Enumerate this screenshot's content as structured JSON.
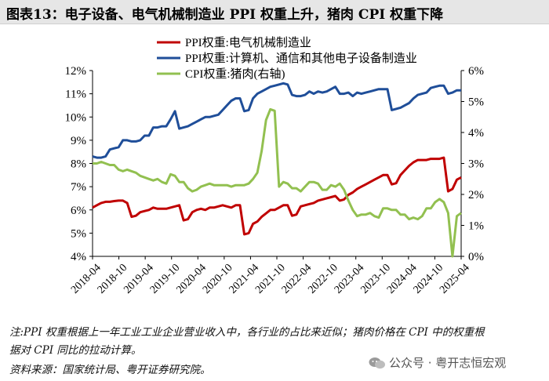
{
  "title": "图表13：电子设备、电气机械制造业 PPI 权重上升，猪肉 CPI 权重下降",
  "notes": {
    "line1": "注:PPI 权重根据上一年工业工业企业营业收入中，各行业的占比来近似；猪肉价格在 CPI 中的权重根",
    "line2": "据对 CPI 同比的拉动计算。",
    "source": "资料来源：国家统计局、粤开证券研究院。"
  },
  "watermark": {
    "text": "公众号 · 粤开志恒宏观",
    "icon": "wechat-icon"
  },
  "chart_data": {
    "type": "line",
    "title": "图表13：电子设备、电气机械制造业 PPI 权重上升，猪肉 CPI 权重下降",
    "x_ticks": [
      "2018-04",
      "2018-10",
      "2019-04",
      "2019-10",
      "2020-04",
      "2020-10",
      "2021-04",
      "2021-10",
      "2022-04",
      "2022-10",
      "2023-04",
      "2023-10",
      "2024-04",
      "2024-10",
      "2025-04"
    ],
    "y_left": {
      "lim": [
        4,
        12
      ],
      "ticks": [
        "4%",
        "5%",
        "6%",
        "7%",
        "8%",
        "9%",
        "10%",
        "11%",
        "12%"
      ]
    },
    "y_right": {
      "lim": [
        0,
        6
      ],
      "ticks": [
        "0%",
        "1%",
        "2%",
        "3%",
        "4%",
        "5%",
        "6%"
      ]
    },
    "legend": [
      "PPI权重:电气机械制造业",
      "PPI权重:计算机、通信和其他电子设备制造业",
      "CPI权重:猪肉(右轴)"
    ],
    "series": [
      {
        "name": "PPI权重:电气机械制造业",
        "color": "#c00000",
        "axis": "left",
        "values": [
          6.1,
          6.2,
          6.3,
          6.35,
          6.35,
          6.38,
          6.4,
          6.4,
          6.3,
          5.7,
          5.75,
          5.9,
          5.95,
          6.0,
          6.1,
          6.05,
          6.05,
          6.05,
          6.1,
          6.15,
          6.2,
          5.55,
          5.6,
          5.9,
          6.0,
          6.05,
          6.0,
          6.1,
          6.1,
          6.15,
          6.2,
          6.15,
          6.1,
          6.2,
          6.2,
          4.95,
          5.0,
          5.4,
          5.5,
          5.7,
          5.85,
          6.0,
          6.0,
          6.1,
          6.2,
          6.2,
          5.75,
          5.8,
          6.15,
          6.2,
          6.25,
          6.3,
          6.4,
          6.45,
          6.5,
          6.55,
          6.6,
          6.4,
          6.45,
          6.65,
          6.75,
          6.9,
          7.0,
          7.1,
          7.2,
          7.3,
          7.4,
          7.5,
          7.5,
          7.1,
          7.15,
          7.5,
          7.7,
          7.9,
          8.05,
          8.15,
          8.15,
          8.15,
          8.2,
          8.2,
          8.2,
          8.25,
          6.8,
          6.9,
          7.3,
          7.4
        ]
      },
      {
        "name": "PPI权重:计算机、通信和其他电子设备制造业",
        "color": "#1f4e99",
        "axis": "left",
        "values": [
          8.3,
          8.25,
          8.25,
          8.3,
          8.6,
          8.65,
          8.7,
          9.0,
          9.0,
          8.95,
          8.95,
          9.0,
          9.2,
          9.2,
          9.55,
          9.55,
          9.6,
          9.6,
          9.9,
          10.25,
          9.5,
          9.55,
          9.6,
          9.7,
          9.8,
          9.9,
          10.0,
          10.0,
          10.05,
          10.1,
          10.3,
          10.5,
          10.7,
          10.8,
          10.8,
          10.25,
          10.3,
          10.8,
          11.0,
          11.1,
          11.2,
          11.3,
          11.35,
          11.4,
          11.45,
          11.4,
          10.95,
          10.9,
          10.9,
          10.95,
          11.1,
          11.0,
          11.1,
          11.05,
          11.1,
          11.2,
          11.3,
          11.0,
          11.0,
          11.05,
          10.9,
          11.05,
          11.0,
          11.05,
          11.1,
          11.15,
          11.2,
          11.2,
          11.2,
          10.3,
          10.35,
          10.4,
          10.5,
          10.6,
          10.8,
          10.95,
          11.0,
          11.05,
          11.25,
          11.3,
          11.35,
          11.35,
          11.0,
          11.05,
          11.15,
          11.15
        ]
      },
      {
        "name": "CPI权重:猪肉(右轴)",
        "color": "#92c050",
        "axis": "right",
        "values": [
          3.0,
          3.0,
          3.05,
          3.0,
          2.95,
          2.95,
          2.8,
          2.75,
          2.8,
          2.75,
          2.7,
          2.6,
          2.55,
          2.5,
          2.45,
          2.5,
          2.4,
          2.35,
          2.65,
          2.6,
          2.4,
          2.4,
          2.2,
          2.1,
          2.15,
          2.25,
          2.3,
          2.35,
          2.3,
          2.3,
          2.3,
          2.3,
          2.25,
          2.3,
          2.3,
          2.3,
          2.35,
          2.5,
          2.7,
          3.4,
          4.4,
          4.75,
          4.7,
          2.25,
          2.4,
          2.35,
          2.2,
          2.2,
          2.1,
          2.25,
          2.4,
          2.4,
          2.35,
          2.15,
          2.15,
          2.3,
          2.25,
          2.35,
          2.15,
          1.8,
          1.5,
          1.3,
          1.35,
          1.35,
          1.4,
          1.3,
          1.25,
          1.55,
          1.55,
          1.5,
          1.5,
          1.35,
          1.35,
          1.2,
          1.25,
          1.2,
          1.3,
          1.55,
          1.55,
          1.75,
          1.85,
          1.75,
          1.4,
          0.0,
          1.3,
          1.4
        ]
      }
    ]
  }
}
